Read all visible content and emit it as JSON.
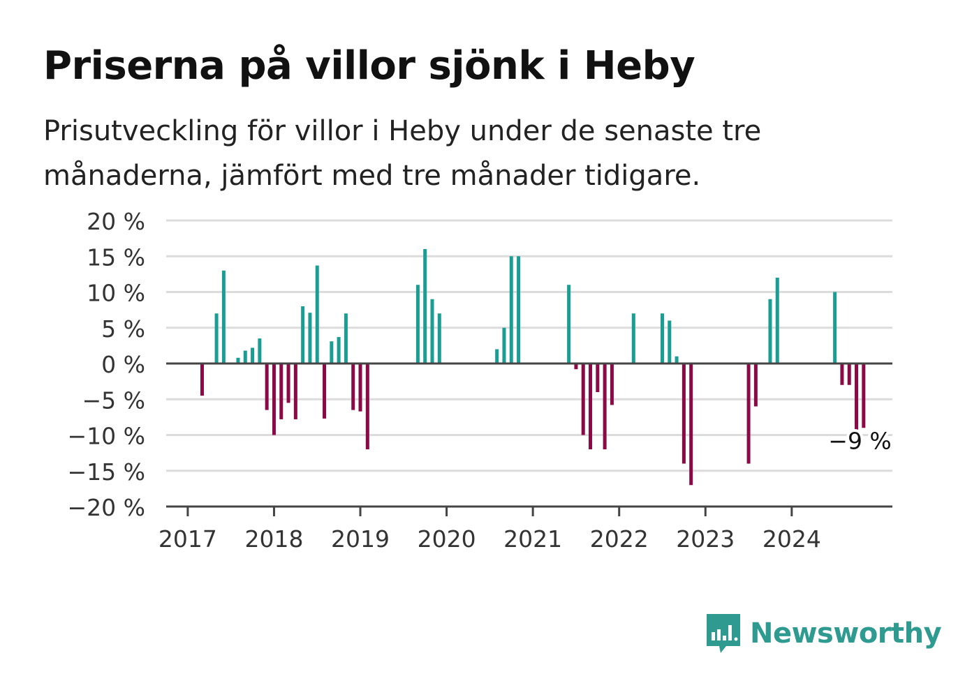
{
  "title": "Priserna på villor sjönk i Heby",
  "subtitle": "Prisutveckling för villor i Heby under de senaste tre månaderna, jämfört med tre månader tidigare.",
  "logo": {
    "text": "Newsworthy",
    "icon": "bar-chart-speech-bubble-icon"
  },
  "colors": {
    "positive": "#1a9e94",
    "negative": "#8b0a46",
    "grid": "#dcdcdc",
    "axis": "#444444",
    "logo": "#2f9a90"
  },
  "chart_data": {
    "type": "bar",
    "y_tick_labels": [
      "20 %",
      "15 %",
      "10 %",
      "5 %",
      "0 %",
      "−5 %",
      "−10 %",
      "−15 %",
      "−20 %"
    ],
    "y_ticks": [
      20,
      15,
      10,
      5,
      0,
      -5,
      -10,
      -15,
      -20
    ],
    "ylim": [
      -20,
      20
    ],
    "x_tick_labels": [
      "2017",
      "2018",
      "2019",
      "2020",
      "2021",
      "2022",
      "2023",
      "2024"
    ],
    "x_ticks": [
      "2017-01",
      "2018-01",
      "2019-01",
      "2020-01",
      "2021-01",
      "2022-01",
      "2023-01",
      "2024-01"
    ],
    "xlim": [
      "2016-10",
      "2025-03"
    ],
    "grid": true,
    "annotation": {
      "text": "−9 %",
      "date": "2024-11",
      "value": -9
    },
    "bars": [
      {
        "date": "2017-03",
        "value": -4.5
      },
      {
        "date": "2017-05",
        "value": 7
      },
      {
        "date": "2017-06",
        "value": 13
      },
      {
        "date": "2017-08",
        "value": 0.8
      },
      {
        "date": "2017-09",
        "value": 1.8
      },
      {
        "date": "2017-10",
        "value": 2.2
      },
      {
        "date": "2017-11",
        "value": 3.5
      },
      {
        "date": "2017-12",
        "value": -6.5
      },
      {
        "date": "2018-01",
        "value": -10
      },
      {
        "date": "2018-02",
        "value": -7.8
      },
      {
        "date": "2018-03",
        "value": -5.5
      },
      {
        "date": "2018-04",
        "value": -7.8
      },
      {
        "date": "2018-05",
        "value": 8
      },
      {
        "date": "2018-06",
        "value": 7.1
      },
      {
        "date": "2018-07",
        "value": 13.7
      },
      {
        "date": "2018-08",
        "value": -7.7
      },
      {
        "date": "2018-09",
        "value": 3.1
      },
      {
        "date": "2018-10",
        "value": 3.7
      },
      {
        "date": "2018-11",
        "value": 7
      },
      {
        "date": "2018-12",
        "value": -6.5
      },
      {
        "date": "2019-01",
        "value": -6.7
      },
      {
        "date": "2019-02",
        "value": -12
      },
      {
        "date": "2019-09",
        "value": 11
      },
      {
        "date": "2019-10",
        "value": 16
      },
      {
        "date": "2019-11",
        "value": 9
      },
      {
        "date": "2019-12",
        "value": 7
      },
      {
        "date": "2020-08",
        "value": 2
      },
      {
        "date": "2020-09",
        "value": 5
      },
      {
        "date": "2020-10",
        "value": 15
      },
      {
        "date": "2020-11",
        "value": 15
      },
      {
        "date": "2021-06",
        "value": 11
      },
      {
        "date": "2021-07",
        "value": -0.8
      },
      {
        "date": "2021-08",
        "value": -10
      },
      {
        "date": "2021-09",
        "value": -12
      },
      {
        "date": "2021-10",
        "value": -4
      },
      {
        "date": "2021-11",
        "value": -12
      },
      {
        "date": "2021-12",
        "value": -5.8
      },
      {
        "date": "2022-03",
        "value": 7
      },
      {
        "date": "2022-07",
        "value": 7
      },
      {
        "date": "2022-08",
        "value": 6
      },
      {
        "date": "2022-09",
        "value": 1
      },
      {
        "date": "2022-10",
        "value": -14
      },
      {
        "date": "2022-11",
        "value": -17
      },
      {
        "date": "2023-07",
        "value": -14
      },
      {
        "date": "2023-08",
        "value": -6
      },
      {
        "date": "2023-10",
        "value": 9
      },
      {
        "date": "2023-11",
        "value": 12
      },
      {
        "date": "2024-07",
        "value": 10
      },
      {
        "date": "2024-08",
        "value": -3
      },
      {
        "date": "2024-09",
        "value": -3
      },
      {
        "date": "2024-10",
        "value": -9.7
      },
      {
        "date": "2024-11",
        "value": -9
      }
    ]
  }
}
